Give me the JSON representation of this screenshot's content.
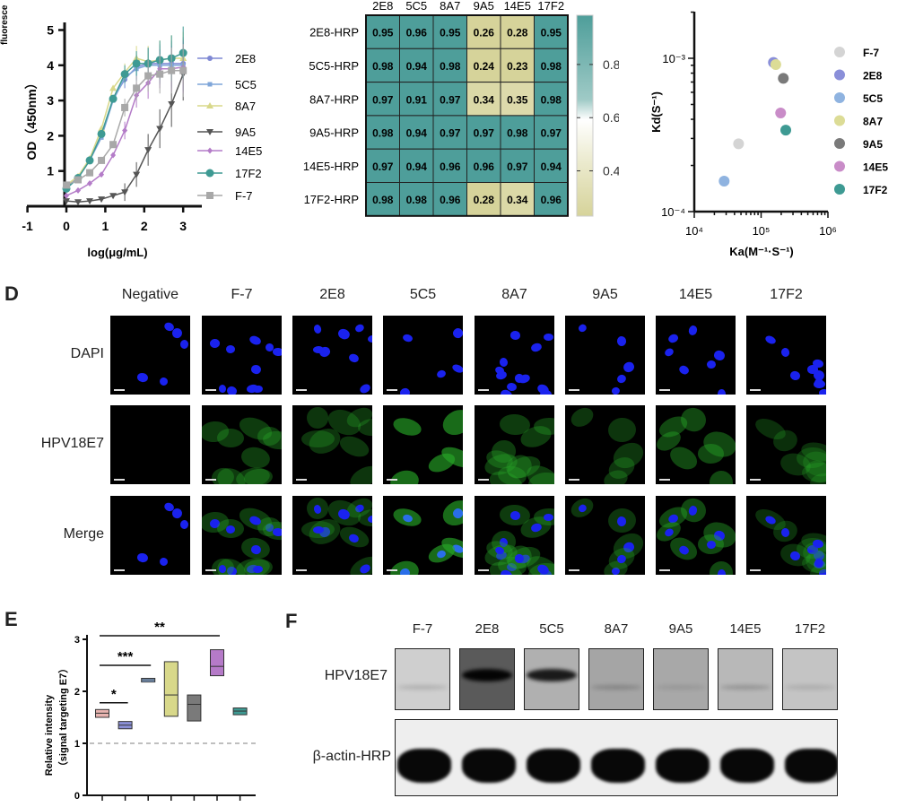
{
  "panel_labels": {
    "d": "D",
    "e": "E",
    "f": "F"
  },
  "chart_data": [
    {
      "id": "dose_response",
      "type": "line",
      "cut_label": "fluoresce",
      "xlabel": "log(μg/mL)",
      "ylabel": "OD（450nm）",
      "xlim": [
        -1,
        3.5
      ],
      "ylim": [
        0,
        5
      ],
      "xticks": [
        "-1",
        "0",
        "1",
        "2",
        "3"
      ],
      "yticks": [
        "1",
        "2",
        "3",
        "4",
        "5"
      ],
      "legend": "right",
      "x": [
        0,
        0.3,
        0.6,
        0.9,
        1.2,
        1.5,
        1.8,
        2.1,
        2.4,
        2.7,
        3.0
      ],
      "series": [
        {
          "name": "2E8",
          "color": "#7f88d4",
          "marker": "circle",
          "values": [
            0.55,
            0.8,
            1.3,
            2.0,
            3.05,
            3.6,
            3.95,
            4.05,
            4.05,
            4.05,
            4.05
          ]
        },
        {
          "name": "5C5",
          "color": "#7fa6d9",
          "marker": "square",
          "values": [
            0.5,
            0.8,
            1.3,
            1.95,
            3.0,
            3.65,
            3.9,
            4.0,
            4.0,
            4.0,
            4.0
          ]
        },
        {
          "name": "8A7",
          "color": "#d8d88a",
          "marker": "triangle",
          "values": [
            0.6,
            0.85,
            1.35,
            2.2,
            3.35,
            3.8,
            4.2,
            4.1,
            4.15,
            4.2,
            4.2
          ]
        },
        {
          "name": "9A5",
          "color": "#555555",
          "marker": "triangle-down",
          "values": [
            0.15,
            0.12,
            0.15,
            0.2,
            0.3,
            0.4,
            0.9,
            1.6,
            2.2,
            2.9,
            3.75
          ]
        },
        {
          "name": "14E5",
          "color": "#b47cc8",
          "marker": "diamond",
          "values": [
            0.3,
            0.45,
            0.65,
            0.9,
            1.45,
            2.15,
            3.15,
            3.5,
            3.9,
            3.9,
            3.95
          ]
        },
        {
          "name": "17F2",
          "color": "#3e9a93",
          "marker": "circle-large",
          "values": [
            0.5,
            0.8,
            1.3,
            2.05,
            3.05,
            3.75,
            4.05,
            4.05,
            4.15,
            4.2,
            4.35
          ]
        },
        {
          "name": "F-7",
          "color": "#a8a8a8",
          "marker": "square-large",
          "values": [
            0.6,
            0.75,
            0.95,
            1.3,
            1.75,
            2.8,
            3.35,
            3.7,
            3.75,
            3.85,
            3.85
          ]
        }
      ]
    },
    {
      "id": "competition_heatmap",
      "type": "heatmap",
      "columns": [
        "2E8",
        "5C5",
        "8A7",
        "9A5",
        "14E5",
        "17F2"
      ],
      "rows": [
        "2E8-HRP",
        "5C5-HRP",
        "8A7-HRP",
        "9A5-HRP",
        "14E5-HRP",
        "17F2-HRP"
      ],
      "values": [
        [
          "0.95",
          "0.96",
          "0.95",
          "0.26",
          "0.28",
          "0.95"
        ],
        [
          "0.98",
          "0.94",
          "0.98",
          "0.24",
          "0.23",
          "0.98"
        ],
        [
          "0.97",
          "0.91",
          "0.97",
          "0.34",
          "0.35",
          "0.98"
        ],
        [
          "0.98",
          "0.94",
          "0.97",
          "0.97",
          "0.98",
          "0.97"
        ],
        [
          "0.97",
          "0.94",
          "0.96",
          "0.96",
          "0.97",
          "0.94"
        ],
        [
          "0.98",
          "0.98",
          "0.96",
          "0.28",
          "0.34",
          "0.96"
        ]
      ],
      "colorbar_ticks": [
        "0.8",
        "0.6",
        "0.4"
      ],
      "colorbar_range": [
        0.23,
        0.985
      ],
      "colors": {
        "low": "#d6d39a",
        "mid": "#ffffff",
        "high": "#4e9e9a"
      }
    },
    {
      "id": "kinetics_scatter",
      "type": "scatter",
      "xlabel": "Ka(M⁻¹·S⁻¹)",
      "ylabel": "Kd(S⁻¹)",
      "xscale": "log",
      "yscale": "log",
      "xlim": [
        10000,
        1000000
      ],
      "ylim": [
        0.0001,
        0.002
      ],
      "xticks": [
        "10⁴",
        "10⁵",
        "10⁶"
      ],
      "yticks": [
        "10⁻³",
        "10⁻⁴"
      ],
      "legend": "right",
      "points": [
        {
          "name": "F-7",
          "color": "#d4d4d4",
          "ka": 46000,
          "kd": 0.000277
        },
        {
          "name": "2E8",
          "color": "#8a8fd9",
          "ka": 153000,
          "kd": 0.00094
        },
        {
          "name": "5C5",
          "color": "#8fb3e0",
          "ka": 28000,
          "kd": 0.000158
        },
        {
          "name": "8A7",
          "color": "#dcdc96",
          "ka": 166000,
          "kd": 0.00091
        },
        {
          "name": "9A5",
          "color": "#7a7a7a",
          "ka": 215000,
          "kd": 0.00074
        },
        {
          "name": "14E5",
          "color": "#c98cc8",
          "ka": 196000,
          "kd": 0.00044
        },
        {
          "name": "17F2",
          "color": "#3e9a93",
          "ka": 234000,
          "kd": 0.00034
        }
      ]
    },
    {
      "id": "relative_intensity",
      "type": "box",
      "ylabel": "Relative intensity",
      "ylabel2": "（signal targeting E7）",
      "ylim": [
        0,
        3
      ],
      "yticks": [
        "0",
        "1",
        "2",
        "3"
      ],
      "reference_line": 1,
      "boxes": [
        {
          "color": "#e8b4b0",
          "min": 1.5,
          "median": 1.58,
          "max": 1.65
        },
        {
          "color": "#8a8fd6",
          "min": 1.28,
          "median": 1.35,
          "max": 1.42
        },
        {
          "color": "#8fb3e0",
          "min": 2.18,
          "median": 2.22,
          "max": 2.25
        },
        {
          "color": "#d8d88a",
          "min": 1.52,
          "median": 1.93,
          "max": 2.57
        },
        {
          "color": "#7a7a7a",
          "min": 1.43,
          "median": 1.75,
          "max": 1.93
        },
        {
          "color": "#b57ac8",
          "min": 2.3,
          "median": 2.48,
          "max": 2.8
        },
        {
          "color": "#3e9a93",
          "min": 1.55,
          "median": 1.62,
          "max": 1.68
        }
      ],
      "significance": [
        {
          "from": 1,
          "to": 2,
          "y": 1.78,
          "label": "*"
        },
        {
          "from": 1,
          "to": 3,
          "y": 2.5,
          "label": "***"
        },
        {
          "from": 1,
          "to": 6,
          "y": 3.07,
          "label": "**"
        }
      ]
    }
  ],
  "microscopy": {
    "columns": [
      "Negative",
      "F-7",
      "2E8",
      "5C5",
      "8A7",
      "9A5",
      "14E5",
      "17F2"
    ],
    "rows": [
      "DAPI",
      "HPV18E7",
      "Merge"
    ],
    "green_intensity": [
      0.05,
      0.5,
      0.45,
      0.9,
      0.5,
      0.45,
      0.6,
      0.4
    ]
  },
  "western": {
    "lanes": [
      "F-7",
      "2E8",
      "5C5",
      "8A7",
      "9A5",
      "14E5",
      "17F2"
    ],
    "rows": [
      "HPV18E7",
      "β-actin-HRP"
    ],
    "e7_band": [
      0.15,
      0.95,
      0.85,
      0.2,
      0.1,
      0.2,
      0.12
    ],
    "e7_background": [
      "#cfcfcf",
      "#5a5a5a",
      "#b0b0b0",
      "#a5a5a5",
      "#a8a8a8",
      "#b8b8b8",
      "#c4c4c4"
    ]
  }
}
